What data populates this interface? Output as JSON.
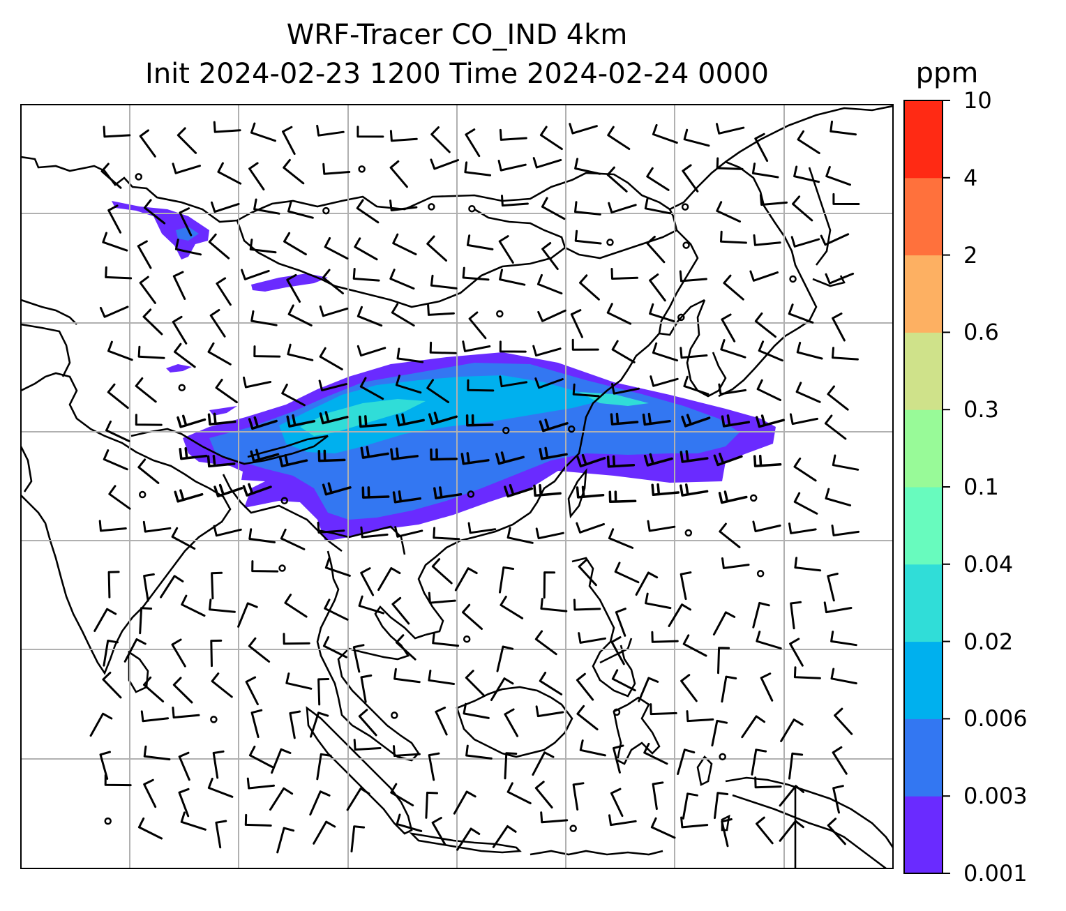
{
  "title": {
    "line1": "WRF-Tracer CO_IND 4km",
    "line2": "Init 2024-02-23 1200 Time 2024-02-24 0000"
  },
  "colorbar": {
    "unit": "ppm",
    "levels": [
      "0.001",
      "0.003",
      "0.006",
      "0.02",
      "0.04",
      "0.1",
      "0.3",
      "0.6",
      "2",
      "4",
      "10"
    ],
    "colors": [
      "#6a2bff",
      "#3377f2",
      "#00b0ee",
      "#30ddd8",
      "#68fbbe",
      "#98fa98",
      "#cfe28a",
      "#fdb062",
      "#ff713c",
      "#ff2a14"
    ]
  },
  "map": {
    "gridlines": true,
    "background": "#ffffff",
    "coastline_color": "#000000",
    "grid_color": "#b0b0b0"
  }
}
